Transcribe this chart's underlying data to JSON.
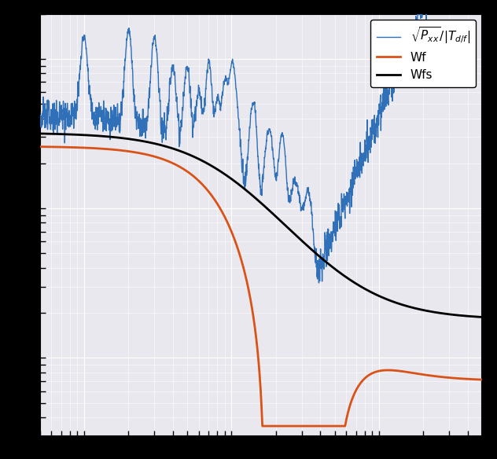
{
  "blue_color": "#3070b8",
  "orange_color": "#d95319",
  "black_color": "#000000",
  "plot_bg_color": "#e8e8ee",
  "grid_color": "#ffffff",
  "fig_bg_color": "#000000",
  "xlim": [
    0.5,
    500
  ],
  "ylim": [
    0.003,
    2.0
  ],
  "legend_loc": "upper right",
  "wfs_hi": 0.38,
  "wfs_floor": 0.018,
  "wfs_fmid": 8.0,
  "wfs_slope": 1.6,
  "wf_hi": 0.28,
  "wf_floor": 0.008,
  "wf_fmid": 7.0,
  "wf_slope": 2.2,
  "blue_start": 0.45
}
